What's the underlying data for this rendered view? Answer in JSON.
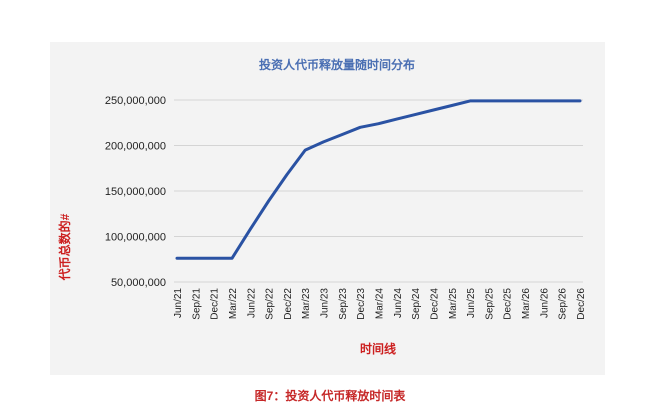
{
  "chart_data": {
    "type": "line",
    "title": "投资人代币释放量随时间分布",
    "xlabel": "时间线",
    "ylabel": "代币总数的#",
    "categories": [
      "Jun/21",
      "Sep/21",
      "Dec/21",
      "Mar/22",
      "Jun/22",
      "Sep/22",
      "Dec/22",
      "Mar/23",
      "Jun/23",
      "Sep/23",
      "Dec/23",
      "Mar/24",
      "Jun/24",
      "Sep/24",
      "Dec/24",
      "Mar/25",
      "Jun/25",
      "Sep/25",
      "Dec/25",
      "Mar/26",
      "Jun/26",
      "Sep/26",
      "Dec/26"
    ],
    "series": [
      {
        "values": [
          76000000,
          76000000,
          76000000,
          76000000,
          108000000,
          139000000,
          168000000,
          195000000,
          204000000,
          212000000,
          220000000,
          224000000,
          229000000,
          234000000,
          239000000,
          244000000,
          249000000,
          249000000,
          249000000,
          249000000,
          249000000,
          249000000,
          249000000
        ]
      }
    ],
    "yticks": [
      "50,000,000",
      "100,000,000",
      "150,000,000",
      "200,000,000",
      "250,000,000"
    ],
    "ylim": [
      50000000,
      250000000
    ],
    "grid": true,
    "colors": {
      "line": "#2a52a3",
      "title": "#4a6fb3",
      "axis_title": "#cc1f1f",
      "grid": "#d4d4d4"
    }
  },
  "caption": "图7：投资人代币释放时间表"
}
